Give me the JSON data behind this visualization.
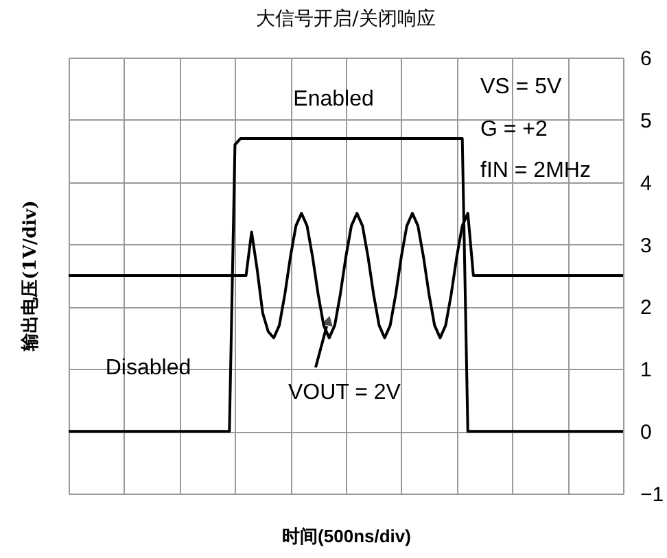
{
  "chart_data": {
    "type": "line",
    "title": "大信号开启/关闭响应",
    "xlabel": "时间(500ns/div)",
    "ylabel": "输出电压(1V/div)",
    "categories": [
      null,
      null,
      null,
      null,
      null,
      null,
      null,
      null,
      null,
      null,
      null,
      null,
      null,
      null,
      null,
      null,
      null,
      null,
      null,
      null,
      null,
      null,
      null,
      null,
      null,
      null,
      null,
      null,
      null,
      null,
      null,
      null,
      null,
      null,
      null,
      null,
      null,
      null,
      null,
      null,
      null,
      null,
      null,
      null,
      null,
      null,
      null,
      null,
      null,
      null,
      null,
      null,
      null,
      null,
      null,
      null,
      null,
      null,
      null,
      null,
      null,
      null,
      null,
      null,
      null,
      null,
      null,
      null,
      null,
      null,
      null,
      null,
      null,
      null,
      null,
      null,
      null,
      null,
      null,
      null,
      null,
      null,
      null,
      null,
      null,
      null,
      null,
      null,
      null,
      null,
      null,
      null,
      null,
      null,
      null,
      null,
      null,
      null,
      null,
      null,
      null
    ],
    "series": [
      {
        "color": "#000000",
        "values": [
          0,
          0,
          0,
          0,
          0,
          0,
          0,
          0,
          0,
          0,
          0,
          0,
          0,
          0,
          0,
          0,
          0,
          0,
          0,
          0,
          0,
          0,
          0,
          0,
          0,
          0,
          0,
          0,
          0,
          0,
          4.6,
          4.7,
          4.7,
          4.7,
          4.7,
          4.7,
          4.7,
          4.7,
          4.7,
          4.7,
          4.7,
          4.7,
          4.7,
          4.7,
          4.7,
          4.7,
          4.7,
          4.7,
          4.7,
          4.7,
          4.7,
          4.7,
          4.7,
          4.7,
          4.7,
          4.7,
          4.7,
          4.7,
          4.7,
          4.7,
          4.7,
          4.7,
          4.7,
          4.7,
          4.7,
          4.7,
          4.7,
          4.7,
          4.7,
          4.7,
          4.7,
          4.7,
          0,
          0,
          0,
          0,
          0,
          0,
          0,
          0,
          0,
          0,
          0,
          0,
          0,
          0,
          0,
          0,
          0,
          0,
          0,
          0,
          0,
          0,
          0,
          0,
          0,
          0,
          0,
          0,
          0
        ]
      },
      {
        "color": "#000000",
        "values": [
          2.5,
          2.5,
          2.5,
          2.5,
          2.5,
          2.5,
          2.5,
          2.5,
          2.5,
          2.5,
          2.5,
          2.5,
          2.5,
          2.5,
          2.5,
          2.5,
          2.5,
          2.5,
          2.5,
          2.5,
          2.5,
          2.5,
          2.5,
          2.5,
          2.5,
          2.5,
          2.5,
          2.5,
          2.5,
          2.5,
          2.5,
          2.5,
          2.5,
          3.2,
          2.6,
          1.9,
          1.6,
          1.5,
          1.7,
          2.2,
          2.8,
          3.3,
          3.5,
          3.3,
          2.8,
          2.2,
          1.7,
          1.5,
          1.7,
          2.2,
          2.8,
          3.3,
          3.5,
          3.3,
          2.8,
          2.2,
          1.7,
          1.5,
          1.7,
          2.2,
          2.8,
          3.3,
          3.5,
          3.3,
          2.8,
          2.2,
          1.7,
          1.5,
          1.7,
          2.2,
          2.8,
          3.3,
          3.5,
          2.5,
          2.5,
          2.5,
          2.5,
          2.5,
          2.5,
          2.5,
          2.5,
          2.5,
          2.5,
          2.5,
          2.5,
          2.5,
          2.5,
          2.5,
          2.5,
          2.5,
          2.5,
          2.5,
          2.5,
          2.5,
          2.5,
          2.5,
          2.5,
          2.5,
          2.5,
          2.5,
          2.5
        ]
      }
    ],
    "ylim": [
      -1,
      6
    ],
    "yticks": [
      -1,
      0,
      1,
      2,
      3,
      4,
      5,
      6
    ],
    "grid": true,
    "marker": "none",
    "line_style": "solid",
    "tick_labels": "y",
    "annotations": [
      "Enabled",
      "Disabled",
      "VS = 5V",
      "G = +2",
      "fIN = 2MHz",
      "VOUT  = 2V"
    ]
  }
}
